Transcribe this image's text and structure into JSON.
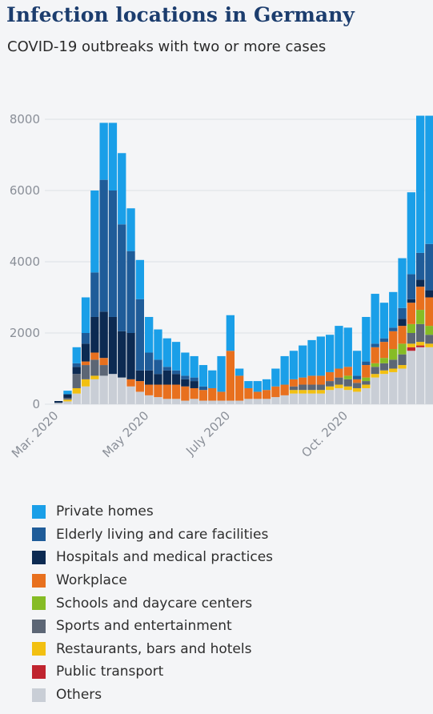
{
  "chart_data": {
    "type": "bar",
    "stacked": true,
    "title": "Infection locations in Germany",
    "subtitle": "COVID-19 outbreaks with two or more cases",
    "ylim": [
      0,
      8500
    ],
    "yticks": [
      0,
      2000,
      4000,
      6000,
      8000
    ],
    "xtick_labels": [
      "Mar. 2020",
      "May 2020",
      "July 2020",
      "Oct. 2020"
    ],
    "xtick_positions": [
      0,
      10,
      19,
      32
    ],
    "grid": true,
    "legend_position": "bottom",
    "series": [
      {
        "key": "others",
        "name": "Others",
        "color": "#c9ced6",
        "values": [
          40,
          80,
          300,
          500,
          700,
          800,
          850,
          750,
          500,
          350,
          250,
          200,
          150,
          150,
          100,
          150,
          100,
          100,
          100,
          100,
          100,
          150,
          150,
          150,
          200,
          250,
          300,
          300,
          300,
          300,
          400,
          450,
          400,
          350,
          450,
          750,
          850,
          900,
          1000,
          1500,
          1600,
          1600
        ]
      },
      {
        "key": "public_transport",
        "name": "Public transport",
        "color": "#c0242f",
        "values": [
          0,
          0,
          0,
          0,
          0,
          0,
          0,
          0,
          0,
          0,
          0,
          0,
          0,
          0,
          0,
          0,
          0,
          0,
          0,
          0,
          0,
          0,
          0,
          0,
          0,
          0,
          0,
          0,
          0,
          0,
          0,
          0,
          0,
          0,
          0,
          0,
          0,
          0,
          0,
          100,
          50,
          0
        ]
      },
      {
        "key": "restaurants",
        "name": "Restaurants, bars and hotels",
        "color": "#f2c011",
        "values": [
          0,
          50,
          150,
          200,
          100,
          0,
          0,
          0,
          0,
          0,
          0,
          0,
          0,
          0,
          0,
          0,
          0,
          0,
          0,
          0,
          0,
          0,
          0,
          0,
          0,
          0,
          100,
          100,
          100,
          100,
          100,
          100,
          100,
          100,
          100,
          100,
          100,
          100,
          100,
          100,
          100,
          100
        ]
      },
      {
        "key": "sports",
        "name": "Sports and entertainment",
        "color": "#5c6675",
        "values": [
          0,
          50,
          400,
          400,
          450,
          300,
          0,
          0,
          0,
          0,
          0,
          0,
          0,
          0,
          0,
          0,
          0,
          0,
          0,
          0,
          0,
          0,
          0,
          0,
          0,
          0,
          100,
          150,
          150,
          150,
          150,
          200,
          200,
          150,
          100,
          200,
          200,
          250,
          300,
          300,
          500,
          250
        ]
      },
      {
        "key": "schools",
        "name": "Schools and daycare centers",
        "color": "#86bc25",
        "values": [
          0,
          0,
          0,
          0,
          0,
          0,
          0,
          0,
          0,
          0,
          0,
          0,
          0,
          0,
          0,
          0,
          0,
          0,
          0,
          0,
          0,
          0,
          0,
          0,
          0,
          0,
          0,
          0,
          0,
          0,
          0,
          0,
          100,
          0,
          100,
          100,
          150,
          300,
          300,
          250,
          400,
          250
        ]
      },
      {
        "key": "workplace",
        "name": "Workplace",
        "color": "#e8701e",
        "values": [
          0,
          0,
          0,
          100,
          200,
          200,
          0,
          0,
          200,
          300,
          300,
          350,
          400,
          400,
          400,
          300,
          300,
          350,
          250,
          1400,
          700,
          300,
          200,
          250,
          300,
          300,
          200,
          200,
          250,
          250,
          250,
          250,
          250,
          100,
          350,
          450,
          450,
          500,
          500,
          600,
          650,
          800
        ]
      },
      {
        "key": "hospitals",
        "name": "Hospitals and medical practices",
        "color": "#0c2a52",
        "values": [
          50,
          100,
          200,
          500,
          1000,
          1300,
          1600,
          1300,
          1300,
          300,
          400,
          300,
          400,
          300,
          200,
          200,
          0,
          0,
          0,
          0,
          0,
          0,
          0,
          0,
          0,
          0,
          0,
          0,
          0,
          0,
          0,
          0,
          0,
          0,
          0,
          0,
          0,
          0,
          200,
          100,
          200,
          200
        ]
      },
      {
        "key": "elderly",
        "name": "Elderly living and care facilities",
        "color": "#1f5c99",
        "values": [
          0,
          0,
          100,
          300,
          1250,
          3700,
          3550,
          3000,
          2300,
          2000,
          500,
          400,
          100,
          100,
          100,
          100,
          100,
          0,
          0,
          0,
          0,
          0,
          0,
          0,
          0,
          0,
          0,
          0,
          0,
          0,
          0,
          0,
          0,
          100,
          100,
          100,
          100,
          100,
          300,
          700,
          750,
          1300
        ]
      },
      {
        "key": "private",
        "name": "Private homes",
        "color": "#1a9fe8",
        "values": [
          0,
          100,
          450,
          1000,
          2300,
          1600,
          1900,
          2000,
          1200,
          1100,
          1000,
          850,
          800,
          800,
          650,
          600,
          600,
          500,
          1000,
          1000,
          200,
          200,
          300,
          300,
          500,
          800,
          800,
          900,
          1000,
          1100,
          1050,
          1200,
          1100,
          700,
          1250,
          1400,
          1000,
          1000,
          1400,
          2300,
          3850,
          3600
        ]
      }
    ]
  }
}
